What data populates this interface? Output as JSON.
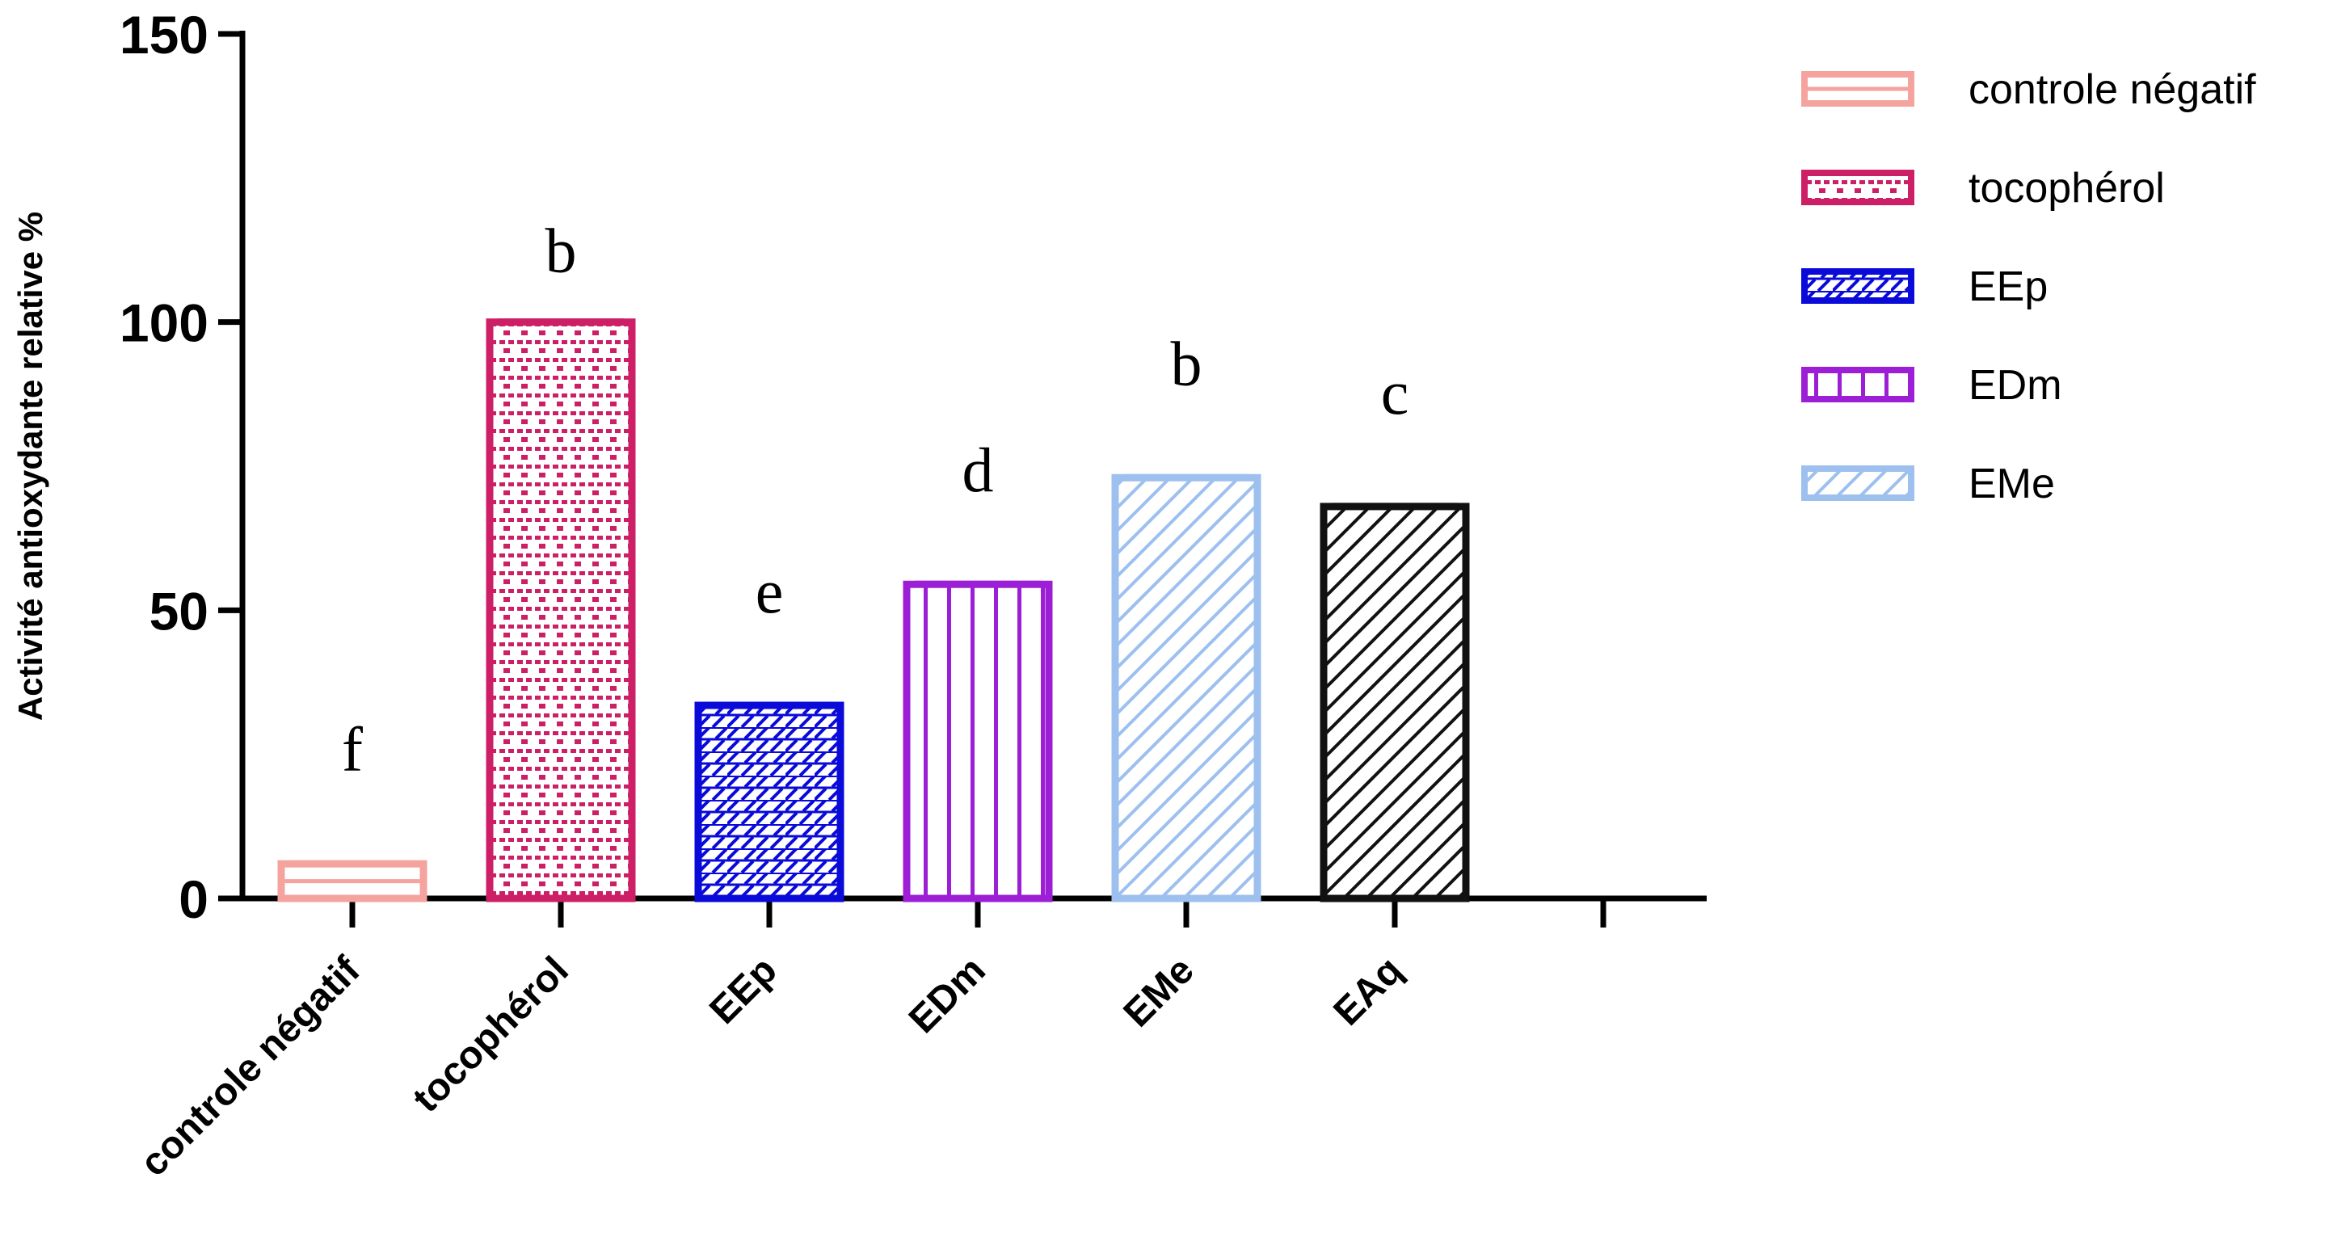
{
  "chart_data": {
    "type": "bar",
    "ylabel": "Activité antioxydante relative %",
    "xlabel": "",
    "ylim": [
      0,
      150
    ],
    "yticks": [
      0,
      50,
      100,
      150
    ],
    "grid": false,
    "legend_position": "top-right",
    "categories": [
      "controle négatif",
      "tocophérol",
      "EEp",
      "EDm",
      "EMe",
      "EAq"
    ],
    "values": [
      6,
      100,
      33.5,
      54.5,
      73,
      68
    ],
    "significance_letters": [
      "f",
      "b",
      "e",
      "d",
      "b",
      "c"
    ],
    "bar_styles": [
      {
        "color": "#f4a39e",
        "pattern": "line"
      },
      {
        "color": "#cc1f66",
        "pattern": "dots"
      },
      {
        "color": "#0a0ad9",
        "pattern": "brick"
      },
      {
        "color": "#9c1fd6",
        "pattern": "vertical"
      },
      {
        "color": "#9dc0ef",
        "pattern": "diagonal"
      },
      {
        "color": "#111111",
        "pattern": "diagonal"
      }
    ],
    "legend": [
      {
        "label": "controle négatif",
        "color": "#f4a39e",
        "pattern": "line"
      },
      {
        "label": "tocophérol",
        "color": "#cc1f66",
        "pattern": "dots"
      },
      {
        "label": "EEp",
        "color": "#0a0ad9",
        "pattern": "brick"
      },
      {
        "label": "EDm",
        "color": "#9c1fd6",
        "pattern": "vertical"
      },
      {
        "label": "EMe",
        "color": "#9dc0ef",
        "pattern": "diagonal"
      }
    ]
  }
}
